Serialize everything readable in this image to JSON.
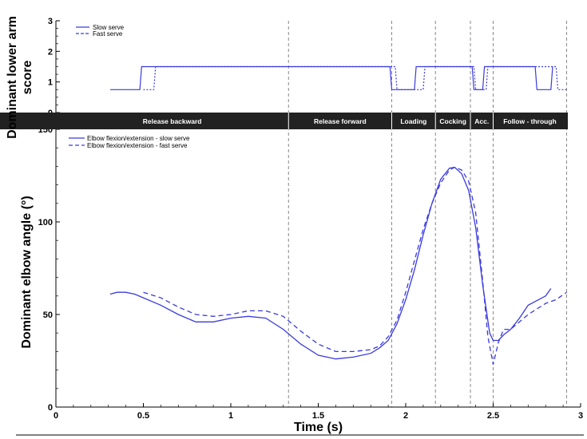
{
  "chart_data": [
    {
      "type": "line",
      "ylabel": "Dominant lower arm score",
      "ylim": [
        0,
        3
      ],
      "yticks": [
        "0",
        "1",
        "2",
        "3"
      ],
      "grid": false,
      "legend": {
        "placement": "top-left",
        "entries": [
          "Slow serve",
          "Fast serve"
        ]
      },
      "series": [
        {
          "name": "Slow serve",
          "style": "solid",
          "color": "#3a3adf",
          "points": [
            [
              0.31,
              0.75
            ],
            [
              0.48,
              0.75
            ],
            [
              0.49,
              1.5
            ],
            [
              1.91,
              1.5
            ],
            [
              1.92,
              0.75
            ],
            [
              2.05,
              0.75
            ],
            [
              2.06,
              1.5
            ],
            [
              2.38,
              1.5
            ],
            [
              2.39,
              0.75
            ],
            [
              2.44,
              0.75
            ],
            [
              2.45,
              1.5
            ],
            [
              2.74,
              1.5
            ],
            [
              2.75,
              0.75
            ],
            [
              2.83,
              0.75
            ],
            [
              2.84,
              1.5
            ]
          ]
        },
        {
          "name": "Fast serve",
          "style": "dashed",
          "color": "#3a3adf",
          "points": [
            [
              0.5,
              0.75
            ],
            [
              0.56,
              0.75
            ],
            [
              0.57,
              1.5
            ],
            [
              1.94,
              1.5
            ],
            [
              1.95,
              0.75
            ],
            [
              2.1,
              0.75
            ],
            [
              2.11,
              1.5
            ],
            [
              2.39,
              1.5
            ],
            [
              2.4,
              0.75
            ],
            [
              2.46,
              0.75
            ],
            [
              2.47,
              1.5
            ],
            [
              2.86,
              1.5
            ],
            [
              2.87,
              0.75
            ],
            [
              2.92,
              0.75
            ]
          ]
        }
      ],
      "phases": [
        {
          "label": "Release backward",
          "start": 0,
          "end": 1.33
        },
        {
          "label": "Release forward",
          "start": 1.33,
          "end": 1.92
        },
        {
          "label": "Loading",
          "start": 1.92,
          "end": 2.17
        },
        {
          "label": "Cocking",
          "start": 2.17,
          "end": 2.37
        },
        {
          "label": "Acc.",
          "start": 2.37,
          "end": 2.5
        },
        {
          "label": "Follow - through",
          "start": 2.5,
          "end": 2.92
        }
      ]
    },
    {
      "type": "line",
      "xlabel": "Time (s)",
      "ylabel": "Dominant elbow angle (°)",
      "xlim": [
        0,
        3
      ],
      "ylim": [
        0,
        150
      ],
      "xticks": [
        "0",
        "0.5",
        "1",
        "1.5",
        "2",
        "2.5",
        "3"
      ],
      "yticks": [
        "0",
        "50",
        "100",
        "150"
      ],
      "grid": false,
      "legend": {
        "placement": "top-left",
        "entries": [
          "Elbow flexion/extension - slow serve",
          "Elbow flexion/extension - fast serve"
        ]
      },
      "phase_boundaries": [
        1.33,
        1.92,
        2.17,
        2.37,
        2.5,
        2.92
      ],
      "series": [
        {
          "name": "Elbow flexion/extension - slow serve",
          "style": "solid",
          "color": "#3a3adf",
          "x": [
            0.31,
            0.35,
            0.4,
            0.45,
            0.5,
            0.6,
            0.7,
            0.8,
            0.9,
            1.0,
            1.1,
            1.2,
            1.3,
            1.4,
            1.5,
            1.6,
            1.7,
            1.8,
            1.85,
            1.9,
            1.95,
            2.0,
            2.05,
            2.1,
            2.15,
            2.2,
            2.25,
            2.28,
            2.32,
            2.36,
            2.4,
            2.44,
            2.48,
            2.5,
            2.53,
            2.56,
            2.6,
            2.65,
            2.7,
            2.8,
            2.83
          ],
          "y": [
            61,
            62,
            62,
            61,
            59,
            55,
            50,
            46,
            46,
            48,
            49,
            48,
            42,
            34,
            28,
            26,
            27,
            29,
            32,
            36,
            45,
            58,
            74,
            93,
            110,
            123,
            129,
            129.5,
            126,
            117,
            97,
            66,
            40,
            36,
            36,
            39,
            42,
            48,
            55,
            60,
            64
          ]
        },
        {
          "name": "Elbow flexion/extension - fast serve",
          "style": "dashed",
          "color": "#3a3adf",
          "x": [
            0.5,
            0.6,
            0.7,
            0.8,
            0.9,
            1.0,
            1.1,
            1.2,
            1.3,
            1.4,
            1.5,
            1.6,
            1.7,
            1.8,
            1.85,
            1.9,
            1.95,
            2.0,
            2.05,
            2.1,
            2.15,
            2.2,
            2.25,
            2.28,
            2.32,
            2.36,
            2.4,
            2.44,
            2.47,
            2.5,
            2.53,
            2.56,
            2.6,
            2.7,
            2.8,
            2.86,
            2.92
          ],
          "y": [
            62,
            59,
            54,
            50,
            49,
            50,
            52,
            52,
            49,
            41,
            34,
            30,
            30,
            31,
            33,
            38,
            47,
            62,
            79,
            96,
            110,
            121,
            128,
            129.5,
            128,
            122,
            105,
            68,
            38,
            23,
            35,
            42,
            42,
            50,
            56,
            58,
            62
          ]
        }
      ]
    }
  ]
}
